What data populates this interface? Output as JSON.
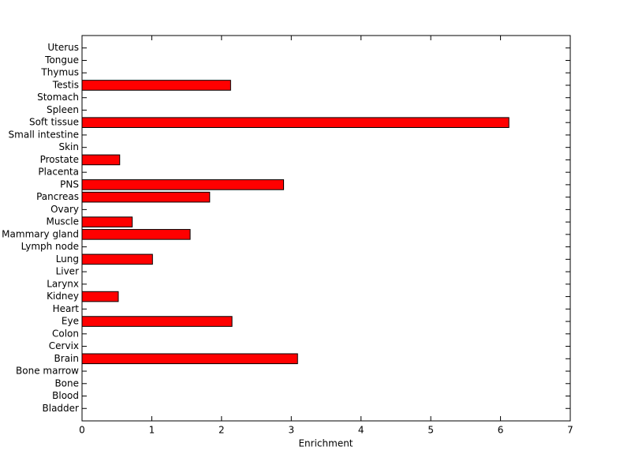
{
  "chart_data": {
    "type": "barh",
    "categories": [
      "Bladder",
      "Blood",
      "Bone",
      "Bone marrow",
      "Brain",
      "Cervix",
      "Colon",
      "Eye",
      "Heart",
      "Kidney",
      "Larynx",
      "Liver",
      "Lung",
      "Lymph node",
      "Mammary gland",
      "Muscle",
      "Ovary",
      "Pancreas",
      "PNS",
      "Placenta",
      "Prostate",
      "Skin",
      "Small intestine",
      "Soft tissue",
      "Spleen",
      "Stomach",
      "Testis",
      "Thymus",
      "Tongue",
      "Uterus"
    ],
    "values": [
      0,
      0,
      0,
      0,
      3.09,
      0,
      0,
      2.15,
      0,
      0.52,
      0,
      0,
      1.01,
      0,
      1.55,
      0.72,
      0,
      1.83,
      2.89,
      0,
      0.54,
      0,
      0,
      6.12,
      0,
      0,
      2.13,
      0,
      0,
      0
    ],
    "color": "#ff0000",
    "xlabel": "Enrichment",
    "xlim": [
      0,
      7
    ],
    "xticks": [
      0,
      1,
      2,
      3,
      4,
      5,
      6,
      7
    ]
  }
}
